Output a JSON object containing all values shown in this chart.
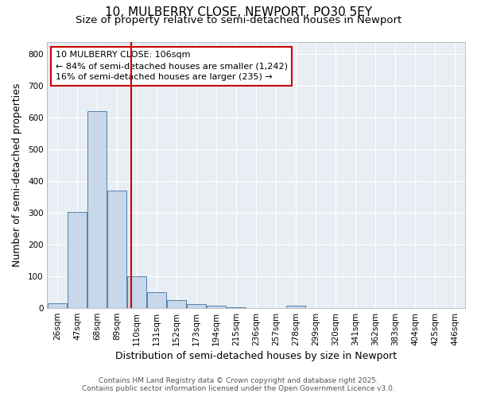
{
  "title_line1": "10, MULBERRY CLOSE, NEWPORT, PO30 5EY",
  "title_line2": "Size of property relative to semi-detached houses in Newport",
  "xlabel": "Distribution of semi-detached houses by size in Newport",
  "ylabel": "Number of semi-detached properties",
  "bar_labels": [
    "26sqm",
    "47sqm",
    "68sqm",
    "89sqm",
    "110sqm",
    "131sqm",
    "152sqm",
    "173sqm",
    "194sqm",
    "215sqm",
    "236sqm",
    "257sqm",
    "278sqm",
    "299sqm",
    "320sqm",
    "341sqm",
    "362sqm",
    "383sqm",
    "404sqm",
    "425sqm",
    "446sqm"
  ],
  "bar_values": [
    15,
    302,
    620,
    370,
    100,
    50,
    25,
    12,
    7,
    3,
    1,
    0,
    8,
    0,
    0,
    0,
    0,
    0,
    0,
    0,
    0
  ],
  "bar_color": "#c8d8ea",
  "bar_edge_color": "#5080b0",
  "annotation_text_line1": "10 MULBERRY CLOSE: 106sqm",
  "annotation_text_line2": "← 84% of semi-detached houses are smaller (1,242)",
  "annotation_text_line3": "16% of semi-detached houses are larger (235) →",
  "annotation_box_color": "#ffffff",
  "annotation_box_edge": "#cc0000",
  "red_line_color": "#cc0000",
  "ylim": [
    0,
    840
  ],
  "yticks": [
    0,
    100,
    200,
    300,
    400,
    500,
    600,
    700,
    800
  ],
  "fig_background": "#ffffff",
  "plot_background": "#e8eef4",
  "grid_color": "#ffffff",
  "footer_line1": "Contains HM Land Registry data © Crown copyright and database right 2025.",
  "footer_line2": "Contains public sector information licensed under the Open Government Licence v3.0.",
  "title_fontsize": 11,
  "subtitle_fontsize": 9.5,
  "axis_label_fontsize": 9,
  "tick_fontsize": 7.5,
  "annotation_fontsize": 8,
  "footer_fontsize": 6.5,
  "red_line_bar_index": 3.72
}
